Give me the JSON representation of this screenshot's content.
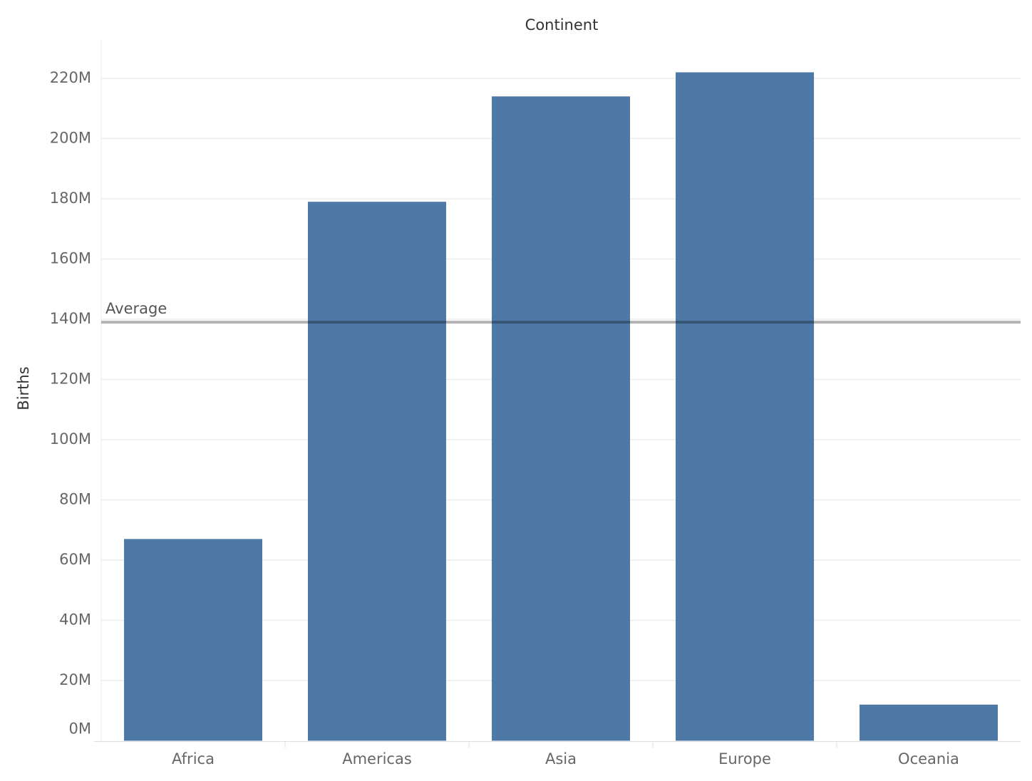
{
  "chart_data": {
    "type": "bar",
    "title": "Continent",
    "y_label": "Births",
    "categories": [
      "Africa",
      "Americas",
      "Asia",
      "Europe",
      "Oceania"
    ],
    "values": [
      67000000,
      179000000,
      214000000,
      222000000,
      12000000
    ],
    "color": "#4e79a7",
    "ylim": [
      0,
      233000000
    ],
    "yticks": [
      {
        "value": 0,
        "label": "0M"
      },
      {
        "value": 20000000,
        "label": "20M"
      },
      {
        "value": 40000000,
        "label": "40M"
      },
      {
        "value": 60000000,
        "label": "60M"
      },
      {
        "value": 80000000,
        "label": "80M"
      },
      {
        "value": 100000000,
        "label": "100M"
      },
      {
        "value": 120000000,
        "label": "120M"
      },
      {
        "value": 140000000,
        "label": "140M"
      },
      {
        "value": 160000000,
        "label": "160M"
      },
      {
        "value": 180000000,
        "label": "180M"
      },
      {
        "value": 200000000,
        "label": "200M"
      },
      {
        "value": 220000000,
        "label": "220M"
      }
    ],
    "grid": true,
    "reference_line": {
      "label": "Average",
      "value": 139000000
    }
  }
}
